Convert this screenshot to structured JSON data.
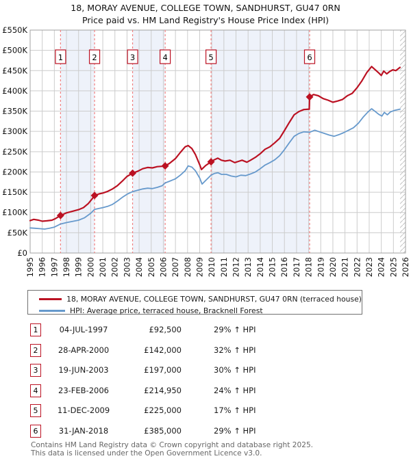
{
  "title": {
    "line1": "18, MORAY AVENUE, COLLEGE TOWN, SANDHURST, GU47 0RN",
    "line2": "Price paid vs. HM Land Registry's House Price Index (HPI)"
  },
  "colors": {
    "property_line": "#bb1122",
    "hpi_line": "#6699cc",
    "sale_dash": "#f08080",
    "band_fill": "#eef2fa",
    "grid": "#cccccc",
    "plot_border": "#a0a0a0",
    "hatch": "#c4c4c4",
    "footer_text": "#666666"
  },
  "chart_data": {
    "type": "line",
    "x_range": [
      1995,
      2026
    ],
    "y_range": [
      0,
      550000
    ],
    "grid": true,
    "legend_position": "below",
    "y_tick_values": [
      0,
      50000,
      100000,
      150000,
      200000,
      250000,
      300000,
      350000,
      400000,
      450000,
      500000,
      550000
    ],
    "y_tick_labels": [
      "£0",
      "£50K",
      "£100K",
      "£150K",
      "£200K",
      "£250K",
      "£300K",
      "£350K",
      "£400K",
      "£450K",
      "£500K",
      "£550K"
    ],
    "x_ticks": [
      1995,
      1996,
      1997,
      1998,
      1999,
      2000,
      2001,
      2002,
      2003,
      2004,
      2005,
      2006,
      2007,
      2008,
      2009,
      2010,
      2011,
      2012,
      2013,
      2014,
      2015,
      2016,
      2017,
      2018,
      2019,
      2020,
      2021,
      2022,
      2023,
      2024,
      2025,
      2026
    ],
    "ownership_bands": [
      [
        1997.51,
        2000.32
      ],
      [
        2003.46,
        2006.15
      ],
      [
        2009.94,
        2018.08
      ]
    ],
    "future_hatch_start": 2025.55,
    "sales": [
      {
        "n": 1,
        "year": 1997.51,
        "price": 92500
      },
      {
        "n": 2,
        "year": 2000.32,
        "price": 142000
      },
      {
        "n": 3,
        "year": 2003.46,
        "price": 197000
      },
      {
        "n": 4,
        "year": 2006.15,
        "price": 214950
      },
      {
        "n": 5,
        "year": 2009.94,
        "price": 225000
      },
      {
        "n": 6,
        "year": 2018.08,
        "price": 385000
      }
    ],
    "series": [
      {
        "name": "18, MORAY AVENUE, COLLEGE TOWN, SANDHURST, GU47 0RN (terraced house)",
        "color": "#bb1122",
        "width": 2.2,
        "points": [
          [
            1995.0,
            80000
          ],
          [
            1995.3,
            83000
          ],
          [
            1995.7,
            81000
          ],
          [
            1996.0,
            78500
          ],
          [
            1996.4,
            79500
          ],
          [
            1996.8,
            81000
          ],
          [
            1997.1,
            85000
          ],
          [
            1997.51,
            92500
          ],
          [
            1998.0,
            99000
          ],
          [
            1998.5,
            103000
          ],
          [
            1999.0,
            107000
          ],
          [
            1999.4,
            112000
          ],
          [
            1999.8,
            122000
          ],
          [
            2000.1,
            133000
          ],
          [
            2000.32,
            142000
          ],
          [
            2000.7,
            146000
          ],
          [
            2001.0,
            148000
          ],
          [
            2001.4,
            152000
          ],
          [
            2001.8,
            158000
          ],
          [
            2002.2,
            166000
          ],
          [
            2002.6,
            177000
          ],
          [
            2003.0,
            189000
          ],
          [
            2003.46,
            197000
          ],
          [
            2003.9,
            202000
          ],
          [
            2004.3,
            208000
          ],
          [
            2004.7,
            211000
          ],
          [
            2005.1,
            210000
          ],
          [
            2005.5,
            213000
          ],
          [
            2005.9,
            214000
          ],
          [
            2006.15,
            214950
          ],
          [
            2006.5,
            221000
          ],
          [
            2007.0,
            233000
          ],
          [
            2007.4,
            248000
          ],
          [
            2007.8,
            262000
          ],
          [
            2008.05,
            265000
          ],
          [
            2008.35,
            258000
          ],
          [
            2008.65,
            243000
          ],
          [
            2009.0,
            218000
          ],
          [
            2009.15,
            206000
          ],
          [
            2009.5,
            216000
          ],
          [
            2009.94,
            225000
          ],
          [
            2010.2,
            230000
          ],
          [
            2010.5,
            234000
          ],
          [
            2010.8,
            229000
          ],
          [
            2011.1,
            227000
          ],
          [
            2011.5,
            229000
          ],
          [
            2011.9,
            223000
          ],
          [
            2012.2,
            226000
          ],
          [
            2012.5,
            229000
          ],
          [
            2012.9,
            224000
          ],
          [
            2013.2,
            229000
          ],
          [
            2013.6,
            236000
          ],
          [
            2014.0,
            245000
          ],
          [
            2014.4,
            256000
          ],
          [
            2014.8,
            262000
          ],
          [
            2015.2,
            272000
          ],
          [
            2015.6,
            283000
          ],
          [
            2016.0,
            302000
          ],
          [
            2016.4,
            322000
          ],
          [
            2016.8,
            341000
          ],
          [
            2017.2,
            349000
          ],
          [
            2017.6,
            354000
          ],
          [
            2018.05,
            355000
          ],
          [
            2018.08,
            385000
          ],
          [
            2018.4,
            391000
          ],
          [
            2018.8,
            388000
          ],
          [
            2019.2,
            381000
          ],
          [
            2019.6,
            377000
          ],
          [
            2020.0,
            372000
          ],
          [
            2020.4,
            375000
          ],
          [
            2020.8,
            379000
          ],
          [
            2021.2,
            388000
          ],
          [
            2021.6,
            394000
          ],
          [
            2022.0,
            408000
          ],
          [
            2022.4,
            425000
          ],
          [
            2022.8,
            445000
          ],
          [
            2023.2,
            460000
          ],
          [
            2023.5,
            452000
          ],
          [
            2023.8,
            444000
          ],
          [
            2024.0,
            438000
          ],
          [
            2024.2,
            449000
          ],
          [
            2024.45,
            442000
          ],
          [
            2024.7,
            448000
          ],
          [
            2024.95,
            452000
          ],
          [
            2025.2,
            450000
          ],
          [
            2025.55,
            458000
          ]
        ]
      },
      {
        "name": "HPI: Average price, terraced house, Bracknell Forest",
        "color": "#6699cc",
        "width": 1.8,
        "points": [
          [
            1995.0,
            62000
          ],
          [
            1995.4,
            61000
          ],
          [
            1995.8,
            60000
          ],
          [
            1996.2,
            59000
          ],
          [
            1996.6,
            61000
          ],
          [
            1997.0,
            64000
          ],
          [
            1997.51,
            71500
          ],
          [
            1998.0,
            75000
          ],
          [
            1998.5,
            78000
          ],
          [
            1999.0,
            81000
          ],
          [
            1999.5,
            87000
          ],
          [
            2000.0,
            98000
          ],
          [
            2000.32,
            107500
          ],
          [
            2000.7,
            110000
          ],
          [
            2001.0,
            112000
          ],
          [
            2001.4,
            115000
          ],
          [
            2001.8,
            120000
          ],
          [
            2002.2,
            128000
          ],
          [
            2002.6,
            137000
          ],
          [
            2003.0,
            145000
          ],
          [
            2003.46,
            151500
          ],
          [
            2003.9,
            155000
          ],
          [
            2004.3,
            158000
          ],
          [
            2004.7,
            160000
          ],
          [
            2005.1,
            159000
          ],
          [
            2005.5,
            162000
          ],
          [
            2005.9,
            166000
          ],
          [
            2006.15,
            173000
          ],
          [
            2006.5,
            177000
          ],
          [
            2007.0,
            183000
          ],
          [
            2007.4,
            192000
          ],
          [
            2007.8,
            203000
          ],
          [
            2008.05,
            215000
          ],
          [
            2008.35,
            212000
          ],
          [
            2008.65,
            203000
          ],
          [
            2009.0,
            185000
          ],
          [
            2009.2,
            170000
          ],
          [
            2009.5,
            179000
          ],
          [
            2009.94,
            192000
          ],
          [
            2010.2,
            196000
          ],
          [
            2010.5,
            198000
          ],
          [
            2010.8,
            194000
          ],
          [
            2011.2,
            194000
          ],
          [
            2011.6,
            190000
          ],
          [
            2012.0,
            188000
          ],
          [
            2012.4,
            192000
          ],
          [
            2012.8,
            191000
          ],
          [
            2013.2,
            195000
          ],
          [
            2013.6,
            200000
          ],
          [
            2014.0,
            208000
          ],
          [
            2014.4,
            217000
          ],
          [
            2014.8,
            223000
          ],
          [
            2015.2,
            230000
          ],
          [
            2015.6,
            240000
          ],
          [
            2016.0,
            255000
          ],
          [
            2016.4,
            272000
          ],
          [
            2016.8,
            288000
          ],
          [
            2017.2,
            295000
          ],
          [
            2017.6,
            299000
          ],
          [
            2018.08,
            298000
          ],
          [
            2018.5,
            303000
          ],
          [
            2018.9,
            299000
          ],
          [
            2019.3,
            295000
          ],
          [
            2019.7,
            291000
          ],
          [
            2020.1,
            288000
          ],
          [
            2020.5,
            292000
          ],
          [
            2020.9,
            297000
          ],
          [
            2021.3,
            303000
          ],
          [
            2021.7,
            309000
          ],
          [
            2022.1,
            320000
          ],
          [
            2022.5,
            335000
          ],
          [
            2022.9,
            348000
          ],
          [
            2023.2,
            356000
          ],
          [
            2023.5,
            349000
          ],
          [
            2023.8,
            342000
          ],
          [
            2024.05,
            338000
          ],
          [
            2024.25,
            347000
          ],
          [
            2024.5,
            341000
          ],
          [
            2024.75,
            348000
          ],
          [
            2025.1,
            352000
          ],
          [
            2025.55,
            355000
          ]
        ]
      }
    ]
  },
  "legend": {
    "items": [
      {
        "label": "18, MORAY AVENUE, COLLEGE TOWN, SANDHURST, GU47 0RN (terraced house)",
        "color": "#bb1122"
      },
      {
        "label": "HPI: Average price, terraced house, Bracknell Forest",
        "color": "#6699cc"
      }
    ]
  },
  "table": {
    "rows": [
      {
        "num": "1",
        "date": "04-JUL-1997",
        "price": "£92,500",
        "pct": "29% ↑ HPI"
      },
      {
        "num": "2",
        "date": "28-APR-2000",
        "price": "£142,000",
        "pct": "32% ↑ HPI"
      },
      {
        "num": "3",
        "date": "19-JUN-2003",
        "price": "£197,000",
        "pct": "30% ↑ HPI"
      },
      {
        "num": "4",
        "date": "23-FEB-2006",
        "price": "£214,950",
        "pct": "24% ↑ HPI"
      },
      {
        "num": "5",
        "date": "11-DEC-2009",
        "price": "£225,000",
        "pct": "17% ↑ HPI"
      },
      {
        "num": "6",
        "date": "31-JAN-2018",
        "price": "£385,000",
        "pct": "29% ↑ HPI"
      }
    ]
  },
  "footer": {
    "line1": "Contains HM Land Registry data © Crown copyright and database right 2025.",
    "line2": "This data is licensed under the Open Government Licence v3.0."
  }
}
